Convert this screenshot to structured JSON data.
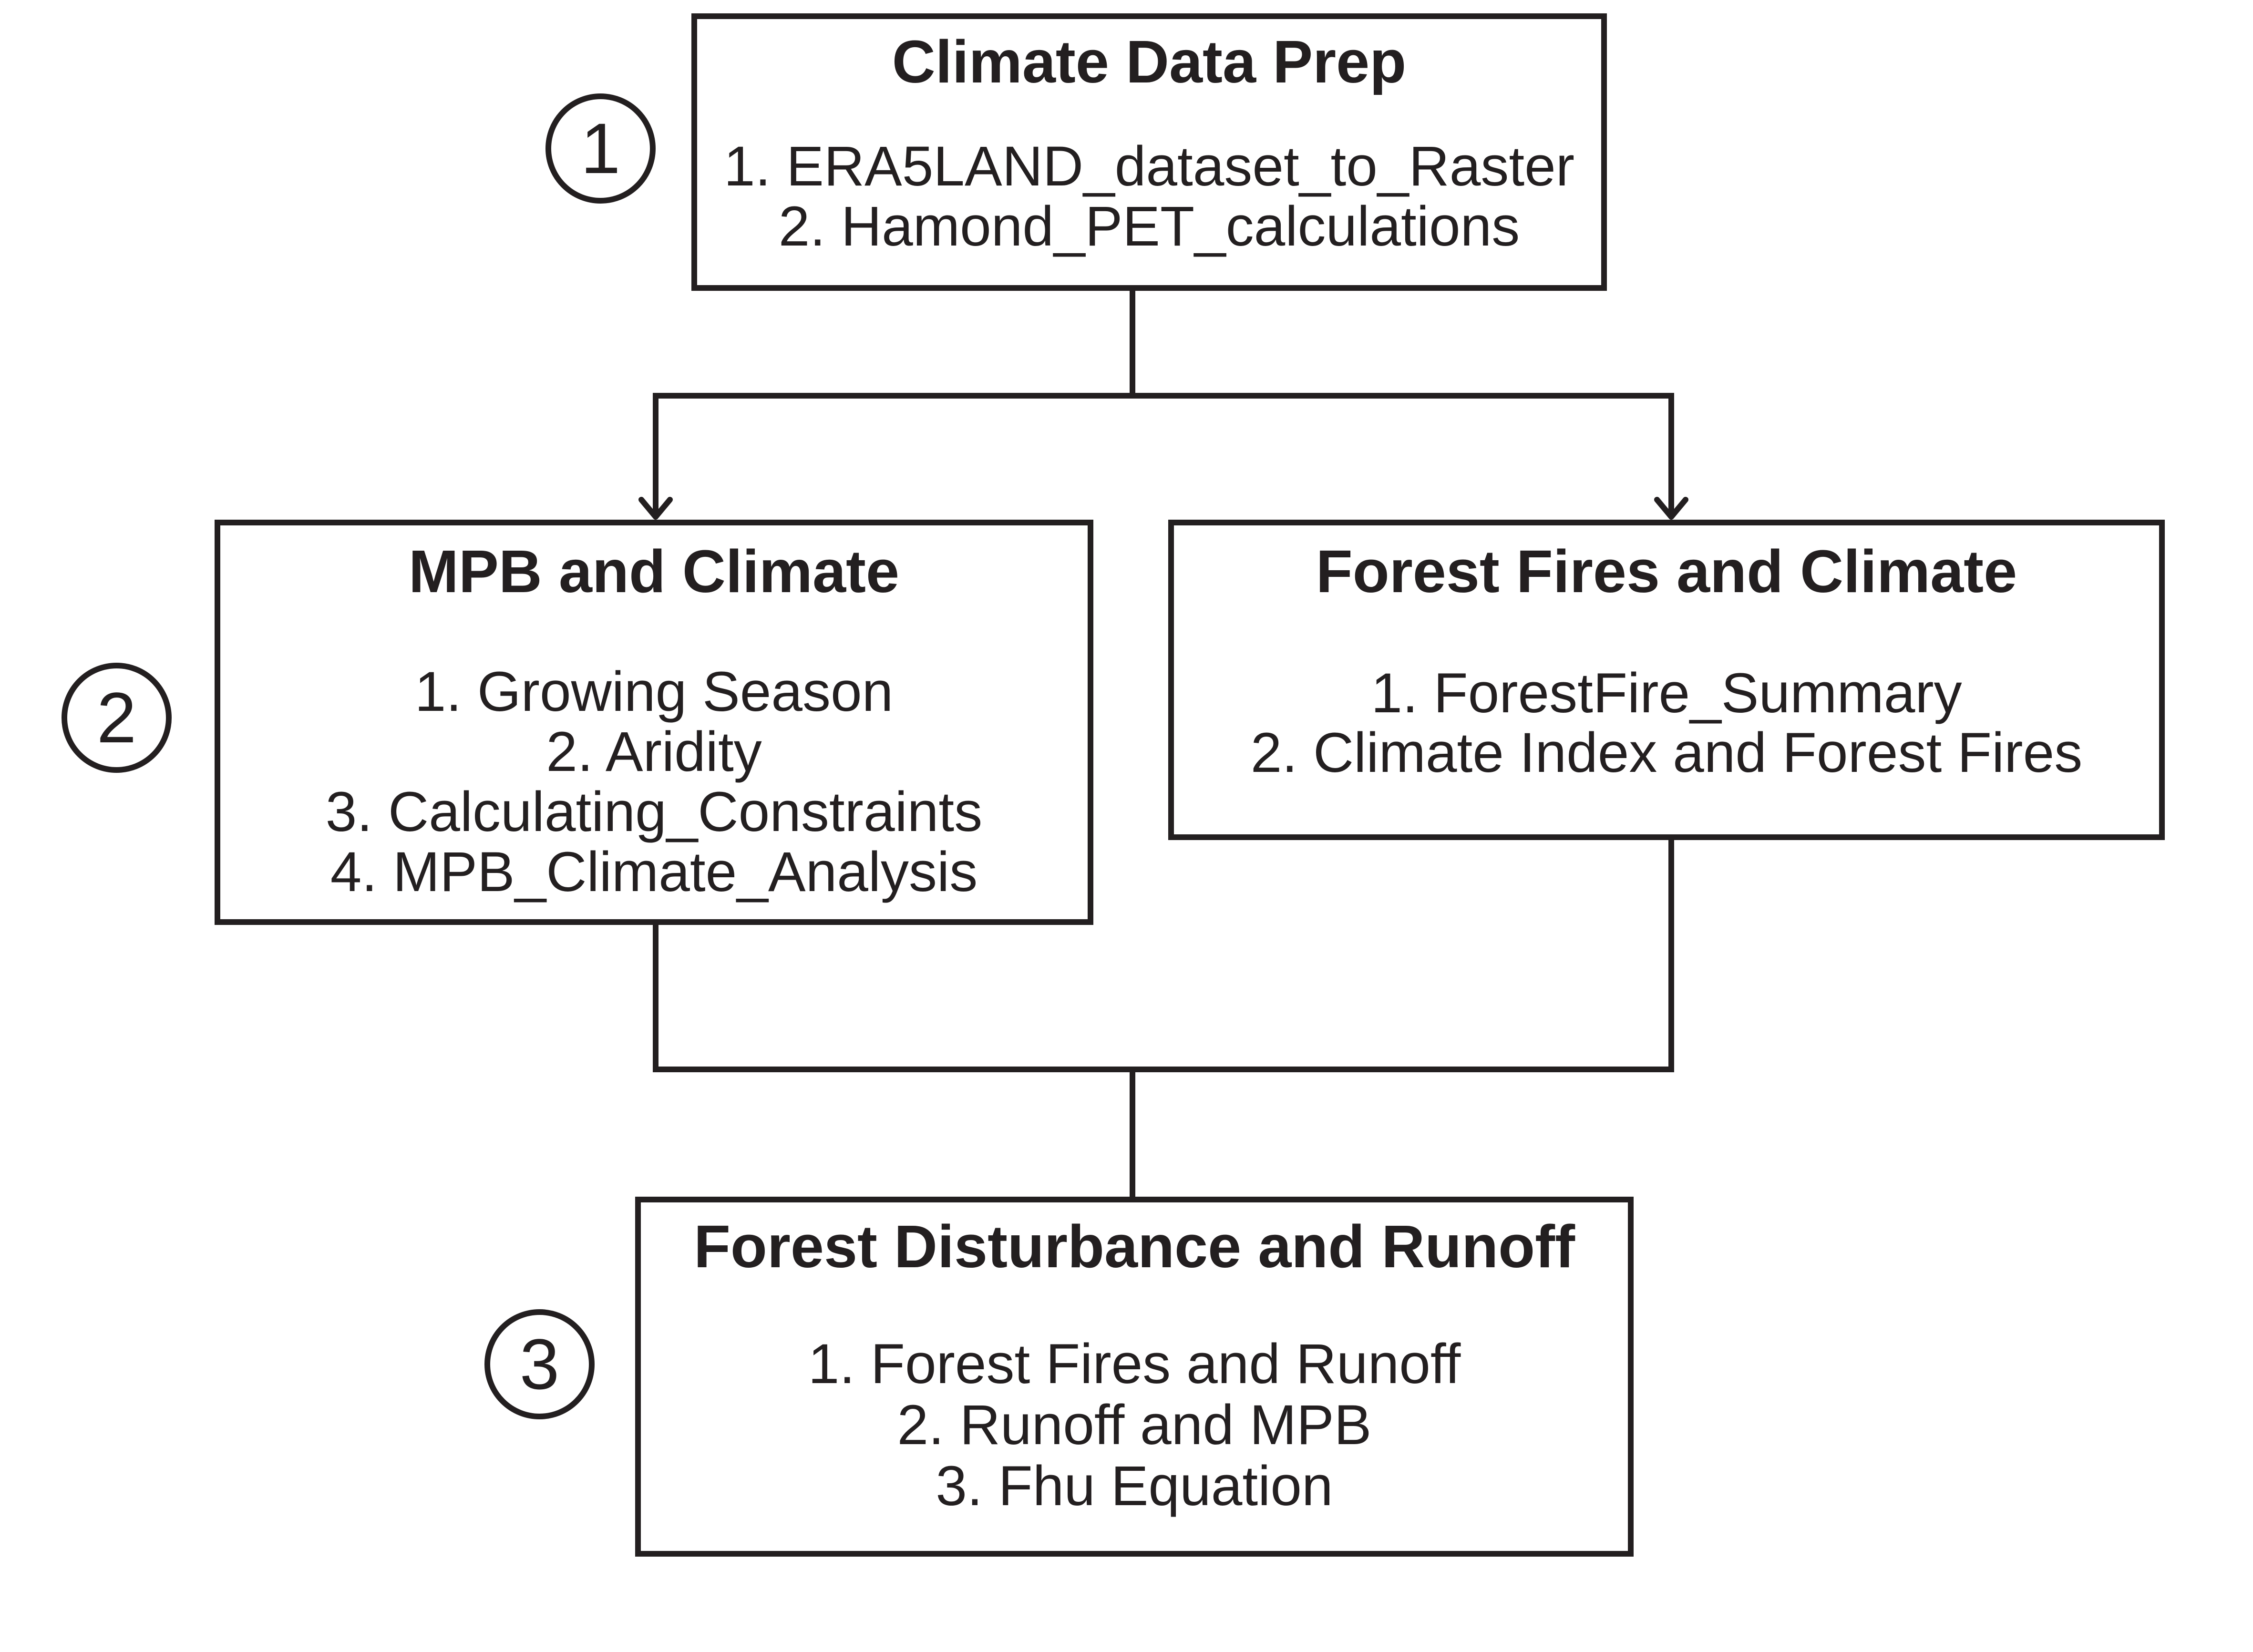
{
  "stages": [
    {
      "marker": "1",
      "boxes": [
        {
          "title": "Climate Data Prep",
          "steps": [
            "1. ERA5LAND_dataset_to_Raster",
            "2. Hamond_PET_calculations"
          ]
        }
      ]
    },
    {
      "marker": "2",
      "boxes": [
        {
          "title": "MPB and Climate",
          "steps": [
            "1. Growing Season",
            "2. Aridity",
            "3. Calculating_Constraints",
            "4. MPB_Climate_Analysis"
          ]
        },
        {
          "title": "Forest Fires and Climate",
          "steps": [
            "1. ForestFire_Summary",
            "2. Climate Index and Forest Fires"
          ]
        }
      ]
    },
    {
      "marker": "3",
      "boxes": [
        {
          "title": "Forest Disturbance and Runoff",
          "steps": [
            "1. Forest Fires and Runoff",
            "2. Runoff and MPB",
            "3. Fhu Equation"
          ]
        }
      ]
    }
  ],
  "colors": {
    "ink": "#231f20",
    "background": "#ffffff"
  }
}
